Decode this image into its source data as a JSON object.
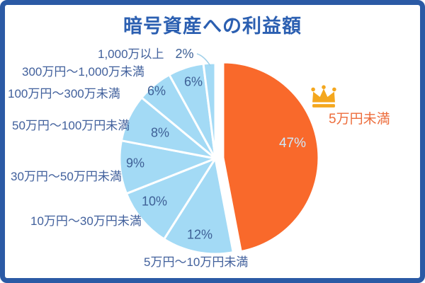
{
  "title": "暗号資産への利益額",
  "colors": {
    "frame_blue": "#2b5aa5",
    "title_blue": "#2b5fb1",
    "label_blue": "#41609c",
    "slice_orange": "#f9692b",
    "slice_blue": "#a3daf5",
    "pct_on_orange": "#cfe9fa",
    "highlight_label_orange": "#ed6c3b",
    "crown_gold": "#f4a71e",
    "separator_white": "#ffffff"
  },
  "highlight": {
    "icon": "crown-icon",
    "target": "5万円未満"
  },
  "chart_data": {
    "type": "pie",
    "title": "暗号資産への利益額",
    "direction": "clockwise",
    "start_angle_deg": 0,
    "legend_position": "labels-around-pie",
    "segments": [
      {
        "label": "5万円未満",
        "value": 47,
        "pct_label": "47%",
        "color": "#f9692b",
        "exploded": true,
        "highlighted": true
      },
      {
        "label": "5万円〜10万円未満",
        "value": 12,
        "pct_label": "12%",
        "color": "#a3daf5",
        "exploded": false
      },
      {
        "label": "10万円〜30万円未満",
        "value": 10,
        "pct_label": "10%",
        "color": "#a3daf5",
        "exploded": false
      },
      {
        "label": "30万円〜50万円未満",
        "value": 9,
        "pct_label": "9%",
        "color": "#a3daf5",
        "exploded": false
      },
      {
        "label": "50万円〜100万円未満",
        "value": 8,
        "pct_label": "8%",
        "color": "#a3daf5",
        "exploded": false
      },
      {
        "label": "100万円〜300万未満",
        "value": 6,
        "pct_label": "6%",
        "color": "#a3daf5",
        "exploded": false
      },
      {
        "label": "300万円〜1,000万未満",
        "value": 6,
        "pct_label": "6%",
        "color": "#a3daf5",
        "exploded": false
      },
      {
        "label": "1,000万以上",
        "value": 2,
        "pct_label": "2%",
        "color": "#a3daf5",
        "exploded": false
      }
    ]
  }
}
